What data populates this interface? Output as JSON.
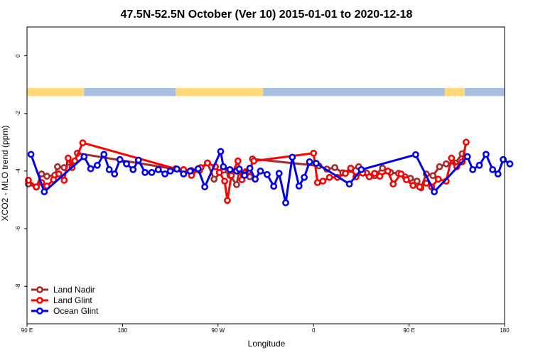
{
  "chart_data": {
    "type": "line",
    "title": "47.5N-52.5N October (Ver 10)   2015-01-01 to 2020-12-18",
    "xlabel": "Longitude",
    "ylabel": "XCO2 - MLO trend (ppm)",
    "xlim": [
      90,
      450
    ],
    "ylim": [
      -9.3,
      1.0
    ],
    "x_ticks": [
      {
        "value": 90,
        "label": "90 E"
      },
      {
        "value": 162,
        "label": "180"
      },
      {
        "value": 234,
        "label": "90 W"
      },
      {
        "value": 306,
        "label": "0"
      },
      {
        "value": 378,
        "label": "90 E"
      },
      {
        "value": 450,
        "label": "180"
      }
    ],
    "y_ticks": [
      {
        "value": 0,
        "label": "0"
      },
      {
        "value": -2,
        "label": "-2"
      },
      {
        "value": -4,
        "label": "-4"
      },
      {
        "value": -6,
        "label": "-6"
      },
      {
        "value": -8,
        "label": "-8"
      }
    ],
    "grid": false,
    "legend_position": "bottom-left",
    "surface_bar": {
      "y_range": [
        -1.4,
        -1.12
      ],
      "segments": [
        {
          "from": 90,
          "to": 133,
          "type": "land"
        },
        {
          "from": 133,
          "to": 202,
          "type": "ocean"
        },
        {
          "from": 202,
          "to": 268,
          "type": "land"
        },
        {
          "from": 268,
          "to": 405,
          "type": "ocean"
        },
        {
          "from": 405,
          "to": 420,
          "type": "land"
        },
        {
          "from": 420,
          "to": 450,
          "type": "ocean"
        }
      ],
      "land_color": "#ffd97a",
      "ocean_color": "#a8bfe0"
    },
    "series": [
      {
        "name": "Land Nadir",
        "color": "#a52a2a",
        "points": [
          [
            91,
            -4.45
          ],
          [
            97,
            -4.56
          ],
          [
            101,
            -4.1
          ],
          [
            105,
            -4.18
          ],
          [
            111,
            -4.14
          ],
          [
            113,
            -3.85
          ],
          [
            118,
            -3.88
          ],
          [
            122,
            -3.7
          ],
          [
            126,
            -3.68
          ],
          [
            128,
            -3.38
          ],
          [
            208,
            -3.98
          ],
          [
            214,
            -3.98
          ],
          [
            220,
            -3.98
          ],
          [
            226,
            -3.72
          ],
          [
            231,
            -4.28
          ],
          [
            238,
            -3.97
          ],
          [
            243,
            -4.15
          ],
          [
            248,
            -4.47
          ],
          [
            250,
            -4.0
          ],
          [
            255,
            -4.02
          ],
          [
            258,
            -4.2
          ],
          [
            260,
            -3.58
          ],
          [
            310,
            -3.82
          ],
          [
            316,
            -3.93
          ],
          [
            322,
            -3.88
          ],
          [
            328,
            -4.06
          ],
          [
            334,
            -3.95
          ],
          [
            340,
            -3.85
          ],
          [
            346,
            -4.07
          ],
          [
            352,
            -4.16
          ],
          [
            358,
            -3.9
          ],
          [
            364,
            -4.05
          ],
          [
            370,
            -4.08
          ],
          [
            375,
            -4.2
          ],
          [
            379,
            -4.25
          ],
          [
            384,
            -4.35
          ],
          [
            387,
            -4.58
          ],
          [
            391,
            -4.1
          ],
          [
            396,
            -4.16
          ],
          [
            401,
            -3.85
          ],
          [
            406,
            -3.75
          ],
          [
            413,
            -3.72
          ],
          [
            418,
            -3.4
          ]
        ]
      },
      {
        "name": "Land Glint",
        "color": "#ff0000",
        "points": [
          [
            91,
            -4.32
          ],
          [
            97,
            -4.55
          ],
          [
            101,
            -4.4
          ],
          [
            105,
            -4.52
          ],
          [
            110,
            -4.3
          ],
          [
            114,
            -4.1
          ],
          [
            118,
            -4.32
          ],
          [
            121,
            -3.55
          ],
          [
            124,
            -3.88
          ],
          [
            126,
            -3.65
          ],
          [
            132,
            -3.02
          ],
          [
            202,
            -3.92
          ],
          [
            208,
            -3.95
          ],
          [
            214,
            -4.15
          ],
          [
            221,
            -3.88
          ],
          [
            226,
            -3.72
          ],
          [
            232,
            -3.85
          ],
          [
            235,
            -4.05
          ],
          [
            239,
            -4.35
          ],
          [
            241,
            -5.02
          ],
          [
            244,
            -4.15
          ],
          [
            249,
            -3.65
          ],
          [
            252,
            -4.3
          ],
          [
            255,
            -4.06
          ],
          [
            257,
            -4.0
          ],
          [
            261,
            -3.65
          ],
          [
            306,
            -3.38
          ],
          [
            309,
            -4.4
          ],
          [
            313,
            -4.35
          ],
          [
            318,
            -4.22
          ],
          [
            324,
            -4.22
          ],
          [
            330,
            -4.08
          ],
          [
            334,
            -3.9
          ],
          [
            338,
            -4.2
          ],
          [
            343,
            -4.07
          ],
          [
            348,
            -4.2
          ],
          [
            352,
            -4.08
          ],
          [
            356,
            -4.18
          ],
          [
            362,
            -4.0
          ],
          [
            366,
            -4.45
          ],
          [
            372,
            -4.1
          ],
          [
            376,
            -4.3
          ],
          [
            381,
            -4.5
          ],
          [
            386,
            -4.55
          ],
          [
            391,
            -4.42
          ],
          [
            395,
            -4.55
          ],
          [
            400,
            -4.28
          ],
          [
            406,
            -4.35
          ],
          [
            410,
            -3.55
          ],
          [
            414,
            -3.85
          ],
          [
            418,
            -3.68
          ],
          [
            421,
            -3.0
          ]
        ]
      },
      {
        "name": "Ocean Glint",
        "color": "#0000ee",
        "points": [
          [
            93,
            -3.42
          ],
          [
            103,
            -4.72
          ],
          [
            133,
            -3.5
          ],
          [
            138,
            -3.92
          ],
          [
            143,
            -3.8
          ],
          [
            148,
            -3.42
          ],
          [
            152,
            -3.95
          ],
          [
            156,
            -4.1
          ],
          [
            160,
            -3.6
          ],
          [
            165,
            -3.75
          ],
          [
            170,
            -3.95
          ],
          [
            174,
            -3.62
          ],
          [
            179,
            -4.05
          ],
          [
            184,
            -4.05
          ],
          [
            189,
            -3.95
          ],
          [
            194,
            -4.1
          ],
          [
            198,
            -4.0
          ],
          [
            203,
            -3.93
          ],
          [
            208,
            -4.1
          ],
          [
            213,
            -4.0
          ],
          [
            219,
            -3.92
          ],
          [
            224,
            -4.55
          ],
          [
            236,
            -3.32
          ],
          [
            238,
            -3.85
          ],
          [
            243,
            -3.95
          ],
          [
            248,
            -4.0
          ],
          [
            250,
            -3.93
          ],
          [
            254,
            -4.15
          ],
          [
            258,
            -3.9
          ],
          [
            262,
            -4.28
          ],
          [
            266,
            -4.0
          ],
          [
            271,
            -4.12
          ],
          [
            276,
            -4.53
          ],
          [
            280,
            -4.08
          ],
          [
            285,
            -5.1
          ],
          [
            290,
            -3.52
          ],
          [
            295,
            -4.52
          ],
          [
            299,
            -4.22
          ],
          [
            303,
            -3.68
          ],
          [
            308,
            -3.73
          ],
          [
            333,
            -4.45
          ],
          [
            342,
            -3.95
          ],
          [
            383,
            -3.43
          ],
          [
            397,
            -4.72
          ],
          [
            422,
            -3.5
          ],
          [
            426,
            -3.95
          ],
          [
            431,
            -3.8
          ],
          [
            436,
            -3.42
          ],
          [
            441,
            -3.95
          ],
          [
            445,
            -4.1
          ],
          [
            449,
            -3.6
          ],
          [
            454,
            -3.75
          ]
        ]
      }
    ]
  }
}
